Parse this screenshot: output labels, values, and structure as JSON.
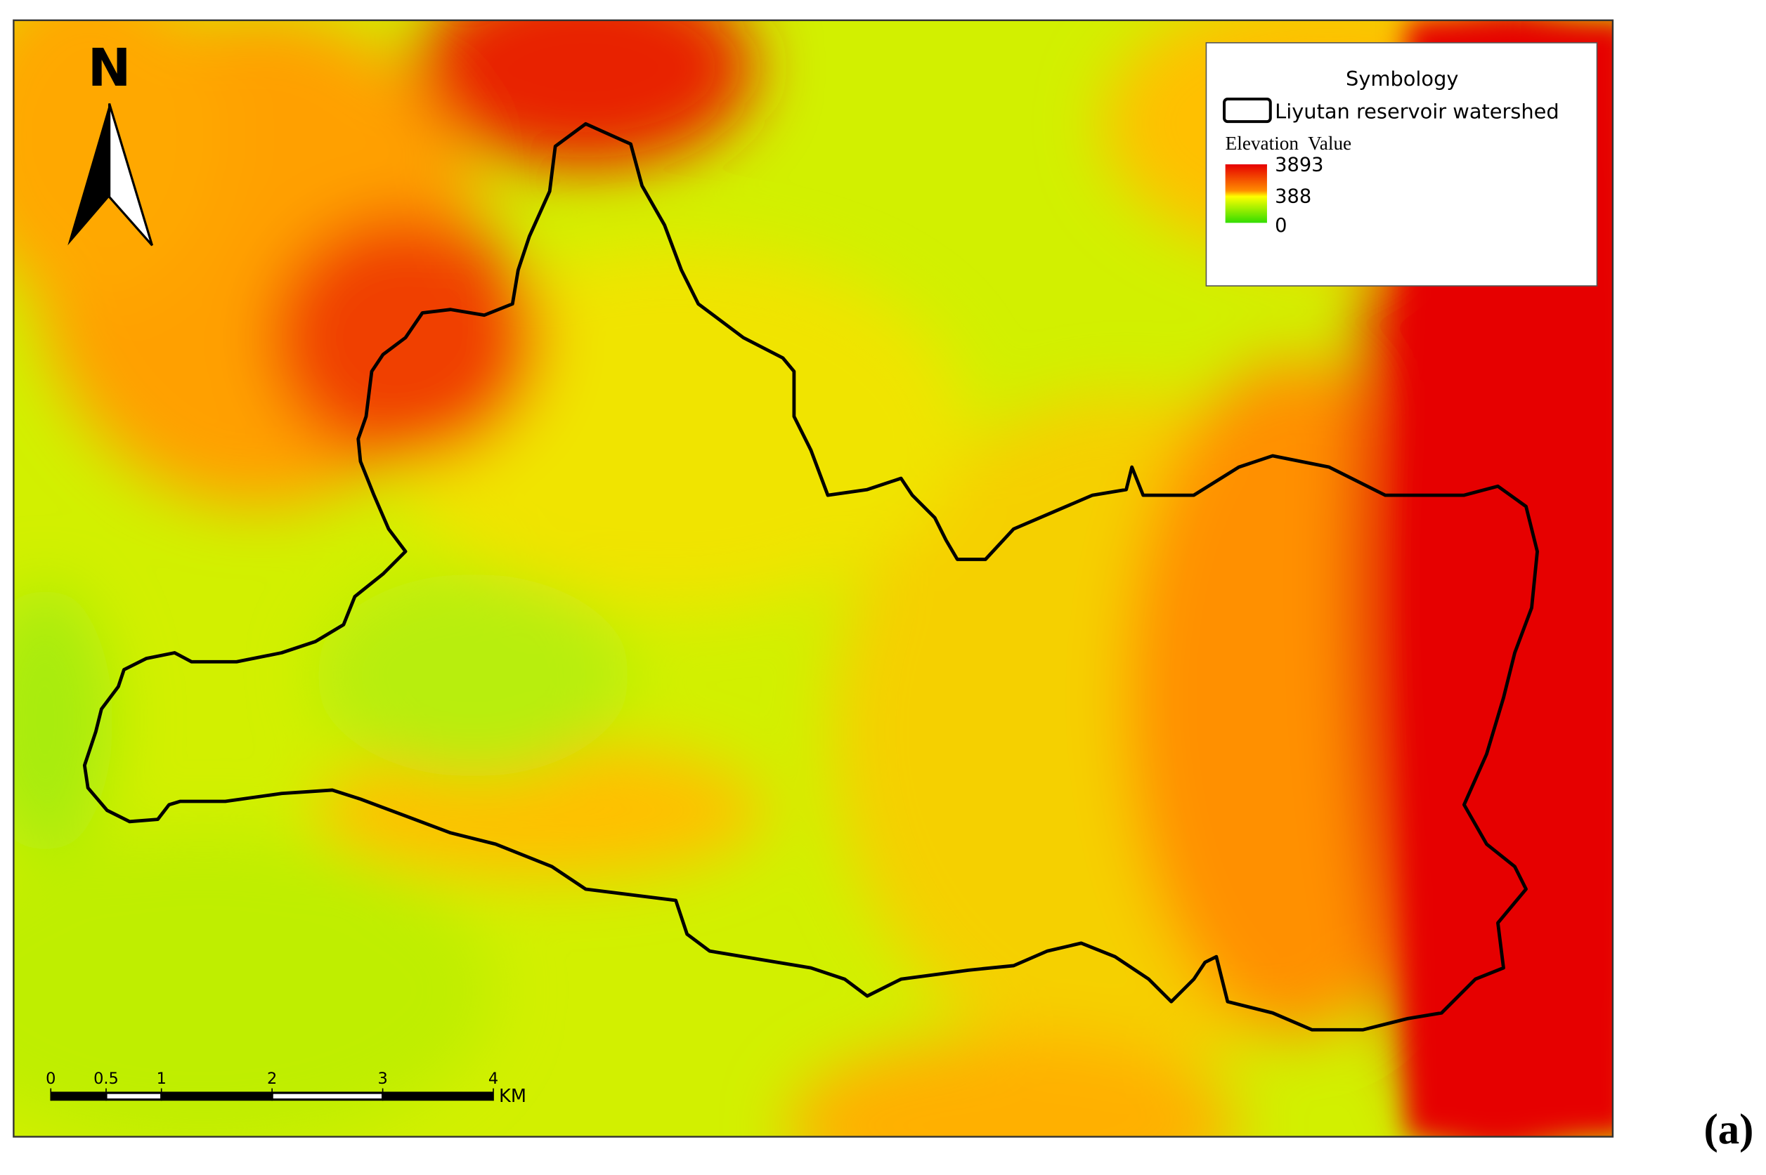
{
  "north_arrow": {
    "label": "N"
  },
  "legend": {
    "title": "Symbology",
    "boundary_label": "Liyutan reservoir watershed",
    "elevation_title": "Elevation  Value",
    "elevation_labels": [
      3893,
      388,
      0
    ]
  },
  "scale_bar": {
    "ticks": [
      0,
      0.5,
      1,
      2,
      3,
      4
    ],
    "unit": "KM"
  },
  "panel_label": "(a)"
}
